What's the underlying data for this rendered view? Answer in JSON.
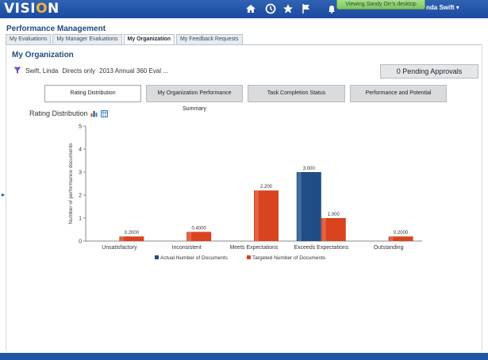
{
  "topbar": {
    "logo": "VISION",
    "icons": [
      "home-icon",
      "history-icon",
      "favorites-star-icon",
      "flag-icon",
      "notifications-icon"
    ],
    "viewing_banner": "Viewing Sandy Orr's desktop",
    "user_menu": "nda Swift ▾"
  },
  "header": {
    "title": "Performance Management",
    "tabs": [
      {
        "label": "My Evaluations",
        "active": false
      },
      {
        "label": "My Manager Evaluations",
        "active": false
      },
      {
        "label": "My Organization",
        "active": true
      },
      {
        "label": "My Feedback Requests",
        "active": false
      }
    ]
  },
  "main": {
    "section_title": "My Organization",
    "filter": {
      "person": "Swift, Linda",
      "scope": "Directs only",
      "document": "2013 Annual 360 Eval ..."
    },
    "pending_approvals": "0 Pending Approvals",
    "subtabs": [
      {
        "label": "Rating Distribution",
        "active": true
      },
      {
        "label": "My Organization Performance Summary",
        "active": false
      },
      {
        "label": "Task Completion Status",
        "active": false
      },
      {
        "label": "Performance and Potential",
        "active": false
      }
    ]
  },
  "chart_data": {
    "type": "bar",
    "title": "Rating Distribution",
    "ylabel": "Number of performance documents",
    "xlabel": "",
    "ylim": [
      0,
      5
    ],
    "yticks": [
      "0",
      "1",
      "2",
      "3",
      "4",
      "5"
    ],
    "categories": [
      "Unsatisfactory",
      "Inconsistent",
      "Meets Expectations",
      "Exceeds Expectations",
      "Outstanding"
    ],
    "series": [
      {
        "name": "Actual Number of Documents",
        "color": "#1f4e86",
        "values": [
          0,
          0,
          0,
          3.0,
          0
        ],
        "labels": [
          "",
          "",
          "",
          "3.000",
          ""
        ]
      },
      {
        "name": "Targeted Number of Documents",
        "color": "#d9431e",
        "values": [
          0.2,
          0.4,
          2.2,
          1.0,
          0.2
        ],
        "labels": [
          "0.2000",
          "0.4000",
          "2.200",
          "1.000",
          "0.2000"
        ]
      }
    ],
    "legend": "bottom"
  }
}
